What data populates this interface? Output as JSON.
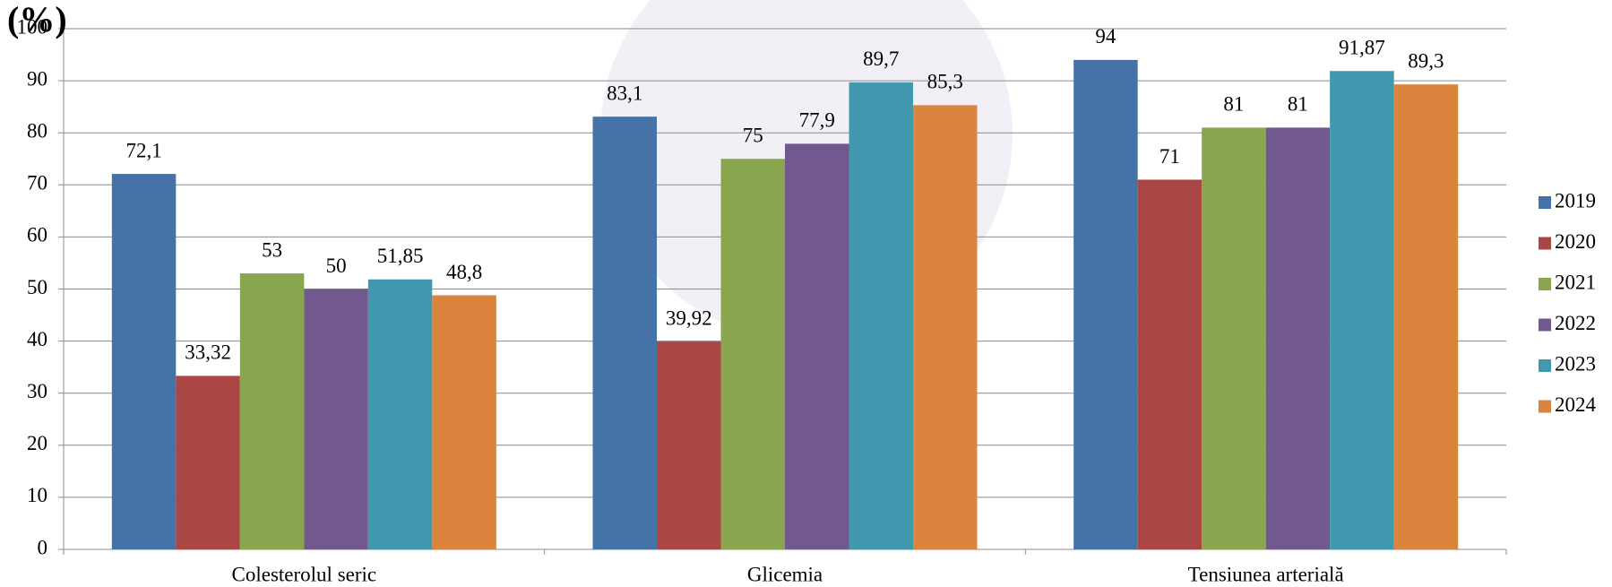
{
  "chart_data": {
    "type": "bar",
    "title": "(%)",
    "categories": [
      "Colesterolul seric",
      "Glicemia",
      "Tensiunea arterială"
    ],
    "series": [
      {
        "name": "2019",
        "color": "#4572a7",
        "values": [
          72.1,
          83.1,
          94
        ],
        "value_labels": [
          "72,1",
          "83,1",
          "94"
        ]
      },
      {
        "name": "2020",
        "color": "#aa4643",
        "values": [
          33.32,
          39.92,
          71
        ],
        "value_labels": [
          "33,32",
          "39,92",
          "71"
        ]
      },
      {
        "name": "2021",
        "color": "#89a54e",
        "values": [
          53,
          75,
          81
        ],
        "value_labels": [
          "53",
          "75",
          "81"
        ]
      },
      {
        "name": "2022",
        "color": "#71588f",
        "values": [
          50,
          77.9,
          81
        ],
        "value_labels": [
          "50",
          "77,9",
          "81"
        ]
      },
      {
        "name": "2023",
        "color": "#4198af",
        "values": [
          51.85,
          89.7,
          91.87
        ],
        "value_labels": [
          "51,85",
          "89,7",
          "91,87"
        ]
      },
      {
        "name": "2024",
        "color": "#db843d",
        "values": [
          48.8,
          85.3,
          89.3
        ],
        "value_labels": [
          "48,8",
          "85,3",
          "89,3"
        ]
      }
    ],
    "ylim": [
      0,
      100
    ],
    "yticks": [
      0,
      10,
      20,
      30,
      40,
      50,
      60,
      70,
      80,
      90,
      100
    ],
    "grid": true,
    "legend": "right"
  }
}
